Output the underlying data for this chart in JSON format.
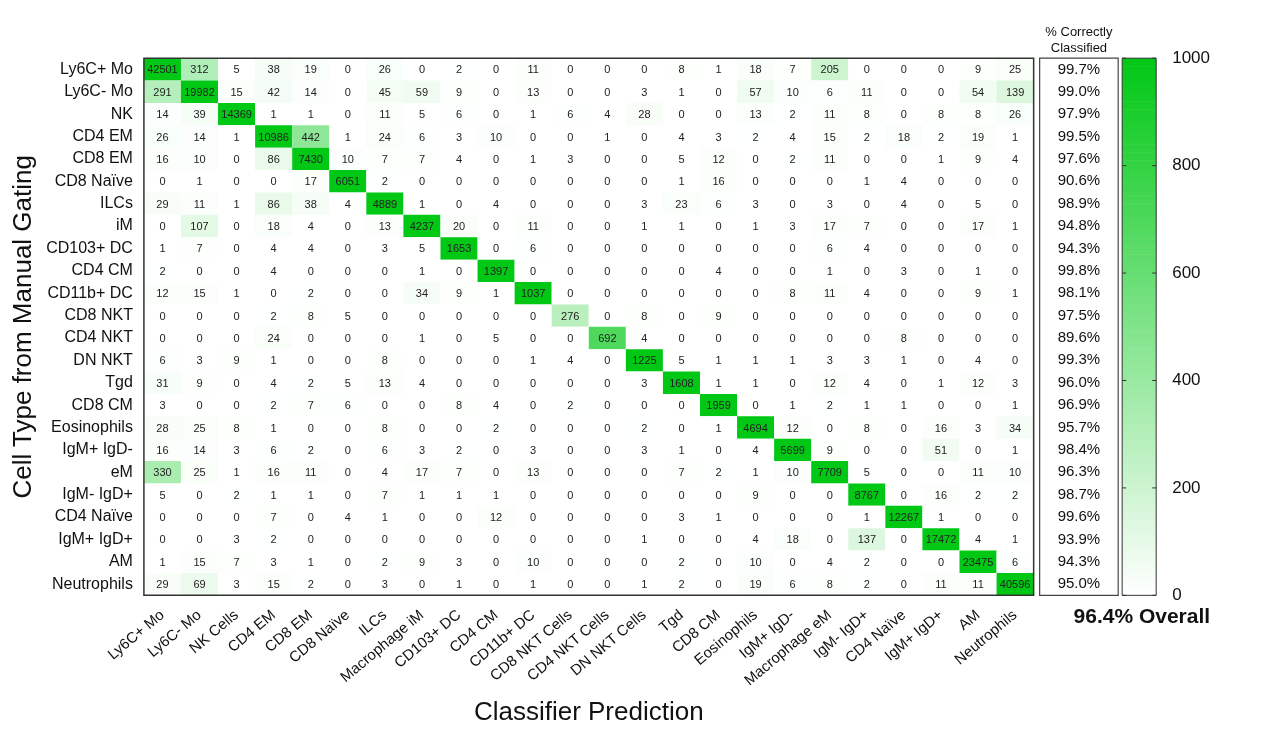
{
  "chart_data": {
    "type": "heatmap",
    "xlabel": "Classifier Prediction",
    "ylabel": "Cell Type from Manual Gating",
    "categories": [
      "Ly6C+ Mo",
      "Ly6C- Mo",
      "NK Cells",
      "CD4 EM",
      "CD8 EM",
      "CD8 Naïve",
      "ILCs",
      "Macrophage iM",
      "CD103+ DC",
      "CD4 CM",
      "CD11b+ DC",
      "CD8 NKT Cells",
      "CD4 NKT Cells",
      "DN NKT Cells",
      "Tgd",
      "CD8 CM",
      "Eosinophils",
      "IgM+ IgD-",
      "Macrophage eM",
      "IgM- IgD+",
      "CD4 Naïve",
      "IgM+ IgD+",
      "AM",
      "Neutrophils"
    ],
    "y_categories": [
      "Ly6C+ Mo",
      "Ly6C- Mo",
      "NK",
      "CD4 EM",
      "CD8 EM",
      "CD8 Naïve",
      "ILCs",
      "iM",
      "CD103+ DC",
      "CD4 CM",
      "CD11b+ DC",
      "CD8 NKT",
      "CD4 NKT",
      "DN NKT",
      "Tgd",
      "CD8 CM",
      "Eosinophils",
      "IgM+ IgD-",
      "eM",
      "IgM- IgD+",
      "CD4 Naïve",
      "IgM+ IgD+",
      "AM",
      "Neutrophils"
    ],
    "y2_categories": [
      "99.7%",
      "99.0%",
      "97.9%",
      "99.5%",
      "97.6%",
      "90.6%",
      "98.9%",
      "94.8%",
      "94.3%",
      "99.8%",
      "98.1%",
      "97.5%",
      "89.6%",
      "99.3%",
      "96.0%",
      "96.9%",
      "95.7%",
      "98.4%",
      "96.3%",
      "98.7%",
      "99.6%",
      "93.9%",
      "94.3%",
      "95.0%"
    ],
    "cells": [
      [
        42501,
        312,
        5,
        38,
        19,
        0,
        26,
        0,
        2,
        0,
        11,
        0,
        0,
        0,
        8,
        1,
        18,
        7,
        205,
        0,
        0,
        0,
        9,
        25
      ],
      [
        291,
        19982,
        15,
        42,
        14,
        0,
        45,
        59,
        9,
        0,
        13,
        0,
        0,
        3,
        1,
        0,
        57,
        10,
        6,
        11,
        0,
        0,
        54,
        139
      ],
      [
        14,
        39,
        14369,
        1,
        1,
        0,
        11,
        5,
        6,
        0,
        1,
        6,
        4,
        28,
        0,
        0,
        13,
        2,
        11,
        8,
        0,
        8,
        8,
        26
      ],
      [
        26,
        14,
        1,
        10986,
        442,
        1,
        24,
        6,
        3,
        10,
        0,
        0,
        1,
        0,
        4,
        3,
        2,
        4,
        15,
        2,
        18,
        2,
        19,
        1
      ],
      [
        16,
        10,
        0,
        86,
        7430,
        10,
        7,
        7,
        4,
        0,
        1,
        3,
        0,
        0,
        5,
        12,
        0,
        2,
        11,
        0,
        0,
        1,
        9,
        4
      ],
      [
        0,
        1,
        0,
        0,
        17,
        6051,
        2,
        0,
        0,
        0,
        0,
        0,
        0,
        0,
        1,
        16,
        0,
        0,
        0,
        1,
        4,
        0,
        0,
        0
      ],
      [
        29,
        11,
        1,
        86,
        38,
        4,
        4889,
        1,
        0,
        4,
        0,
        0,
        0,
        3,
        23,
        6,
        3,
        0,
        3,
        0,
        4,
        0,
        5,
        0
      ],
      [
        0,
        107,
        0,
        18,
        4,
        0,
        13,
        4237,
        20,
        0,
        11,
        0,
        0,
        1,
        1,
        0,
        1,
        3,
        17,
        7,
        0,
        0,
        17,
        1
      ],
      [
        1,
        7,
        0,
        4,
        4,
        0,
        3,
        5,
        1653,
        0,
        6,
        0,
        0,
        0,
        0,
        0,
        0,
        0,
        6,
        4,
        0,
        0,
        0,
        0
      ],
      [
        2,
        0,
        0,
        4,
        0,
        0,
        0,
        1,
        0,
        1397,
        0,
        0,
        0,
        0,
        0,
        4,
        0,
        0,
        1,
        0,
        3,
        0,
        1,
        0
      ],
      [
        12,
        15,
        1,
        0,
        2,
        0,
        0,
        34,
        9,
        1,
        1037,
        0,
        0,
        0,
        0,
        0,
        0,
        8,
        11,
        4,
        0,
        0,
        9,
        1
      ],
      [
        0,
        0,
        0,
        2,
        8,
        5,
        0,
        0,
        0,
        0,
        0,
        276,
        0,
        8,
        0,
        9,
        0,
        0,
        0,
        0,
        0,
        0,
        0,
        0
      ],
      [
        0,
        0,
        0,
        24,
        0,
        0,
        0,
        1,
        0,
        5,
        0,
        0,
        692,
        4,
        0,
        0,
        0,
        0,
        0,
        0,
        8,
        0,
        0,
        0
      ],
      [
        6,
        3,
        9,
        1,
        0,
        0,
        8,
        0,
        0,
        0,
        1,
        4,
        0,
        1225,
        5,
        1,
        1,
        1,
        3,
        3,
        1,
        0,
        4,
        0
      ],
      [
        31,
        9,
        0,
        4,
        2,
        5,
        13,
        4,
        0,
        0,
        0,
        0,
        0,
        3,
        1608,
        1,
        1,
        0,
        12,
        4,
        0,
        1,
        12,
        3
      ],
      [
        3,
        0,
        0,
        2,
        7,
        6,
        0,
        0,
        8,
        4,
        0,
        2,
        0,
        0,
        0,
        1959,
        0,
        1,
        2,
        1,
        1,
        0,
        0,
        1
      ],
      [
        28,
        25,
        8,
        1,
        0,
        0,
        8,
        0,
        0,
        2,
        0,
        0,
        0,
        2,
        0,
        1,
        4694,
        12,
        0,
        8,
        0,
        16,
        3,
        34
      ],
      [
        16,
        14,
        3,
        6,
        2,
        0,
        6,
        3,
        2,
        0,
        3,
        0,
        0,
        3,
        1,
        0,
        4,
        5699,
        9,
        0,
        0,
        51,
        0,
        1
      ],
      [
        330,
        25,
        1,
        16,
        11,
        0,
        4,
        17,
        7,
        0,
        13,
        0,
        0,
        0,
        7,
        2,
        1,
        10,
        7709,
        5,
        0,
        0,
        11,
        10
      ],
      [
        5,
        0,
        2,
        1,
        1,
        0,
        7,
        1,
        1,
        1,
        0,
        0,
        0,
        0,
        0,
        0,
        9,
        0,
        0,
        8767,
        0,
        16,
        2,
        2
      ],
      [
        0,
        0,
        0,
        7,
        0,
        4,
        1,
        0,
        0,
        12,
        0,
        0,
        0,
        0,
        3,
        1,
        0,
        0,
        0,
        1,
        12267,
        1,
        0,
        0
      ],
      [
        0,
        0,
        3,
        2,
        0,
        0,
        0,
        0,
        0,
        0,
        0,
        0,
        0,
        1,
        0,
        0,
        4,
        18,
        0,
        137,
        0,
        17472,
        4,
        1
      ],
      [
        1,
        15,
        7,
        3,
        1,
        0,
        2,
        9,
        3,
        0,
        10,
        0,
        0,
        0,
        2,
        0,
        10,
        0,
        4,
        2,
        0,
        0,
        23475,
        6
      ],
      [
        29,
        69,
        3,
        15,
        2,
        0,
        3,
        0,
        1,
        0,
        1,
        0,
        0,
        1,
        2,
        0,
        19,
        6,
        8,
        2,
        0,
        11,
        11,
        40596
      ]
    ],
    "data_labels": true,
    "clim": [
      0,
      1000
    ],
    "cticks": [
      0,
      200,
      400,
      600,
      800,
      1000
    ],
    "annotations": [
      "% Correctly Classified",
      "96.4% Overall"
    ]
  }
}
